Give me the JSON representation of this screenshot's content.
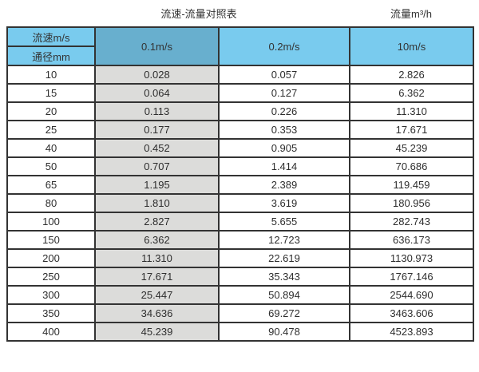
{
  "page": {
    "title_left": "流速-流量对照表",
    "title_right": "流量m³/h"
  },
  "table": {
    "header": {
      "col1_top": "流速m/s",
      "col1_bottom": "通径mm",
      "col2": "0.1m/s",
      "col3": "0.2m/s",
      "col4": "10m/s"
    },
    "rows": [
      [
        "10",
        "0.028",
        "0.057",
        "2.826"
      ],
      [
        "15",
        "0.064",
        "0.127",
        "6.362"
      ],
      [
        "20",
        "0.113",
        "0.226",
        "11.310"
      ],
      [
        "25",
        "0.177",
        "0.353",
        "17.671"
      ],
      [
        "40",
        "0.452",
        "0.905",
        "45.239"
      ],
      [
        "50",
        "0.707",
        "1.414",
        "70.686"
      ],
      [
        "65",
        "1.195",
        "2.389",
        "119.459"
      ],
      [
        "80",
        "1.810",
        "3.619",
        "180.956"
      ],
      [
        "100",
        "2.827",
        "5.655",
        "282.743"
      ],
      [
        "150",
        "6.362",
        "12.723",
        "636.173"
      ],
      [
        "200",
        "11.310",
        "22.619",
        "1130.973"
      ],
      [
        "250",
        "17.671",
        "35.343",
        "1767.146"
      ],
      [
        "300",
        "25.447",
        "50.894",
        "2544.690"
      ],
      [
        "350",
        "34.636",
        "69.272",
        "3463.606"
      ],
      [
        "400",
        "45.239",
        "90.478",
        "4523.893"
      ]
    ],
    "colors": {
      "header_light_blue": "#79CBEE",
      "header_dark_blue": "#68AFCE",
      "column_grey": "#DCDCDA",
      "border": "#333333"
    }
  },
  "chart_data": {
    "type": "table",
    "title": "流速-流量对照表",
    "flow_unit_label": "流量m³/h",
    "row_header_top": "流速m/s",
    "row_header_bottom": "通径mm",
    "velocity_columns": [
      "0.1m/s",
      "0.2m/s",
      "10m/s"
    ],
    "diameters_mm": [
      10,
      15,
      20,
      25,
      40,
      50,
      65,
      80,
      100,
      150,
      200,
      250,
      300,
      350,
      400
    ],
    "series": [
      {
        "name": "0.1m/s",
        "values": [
          0.028,
          0.064,
          0.113,
          0.177,
          0.452,
          0.707,
          1.195,
          1.81,
          2.827,
          6.362,
          11.31,
          17.671,
          25.447,
          34.636,
          45.239
        ]
      },
      {
        "name": "0.2m/s",
        "values": [
          0.057,
          0.127,
          0.226,
          0.353,
          0.905,
          1.414,
          2.389,
          3.619,
          5.655,
          12.723,
          22.619,
          35.343,
          50.894,
          69.272,
          90.478
        ]
      },
      {
        "name": "10m/s",
        "values": [
          2.826,
          6.362,
          11.31,
          17.671,
          45.239,
          70.686,
          119.459,
          180.956,
          282.743,
          636.173,
          1130.973,
          1767.146,
          2544.69,
          3463.606,
          4523.893
        ]
      }
    ],
    "layout": {
      "highlighted_column": "0.1m/s",
      "grid": true,
      "legend": false
    }
  }
}
